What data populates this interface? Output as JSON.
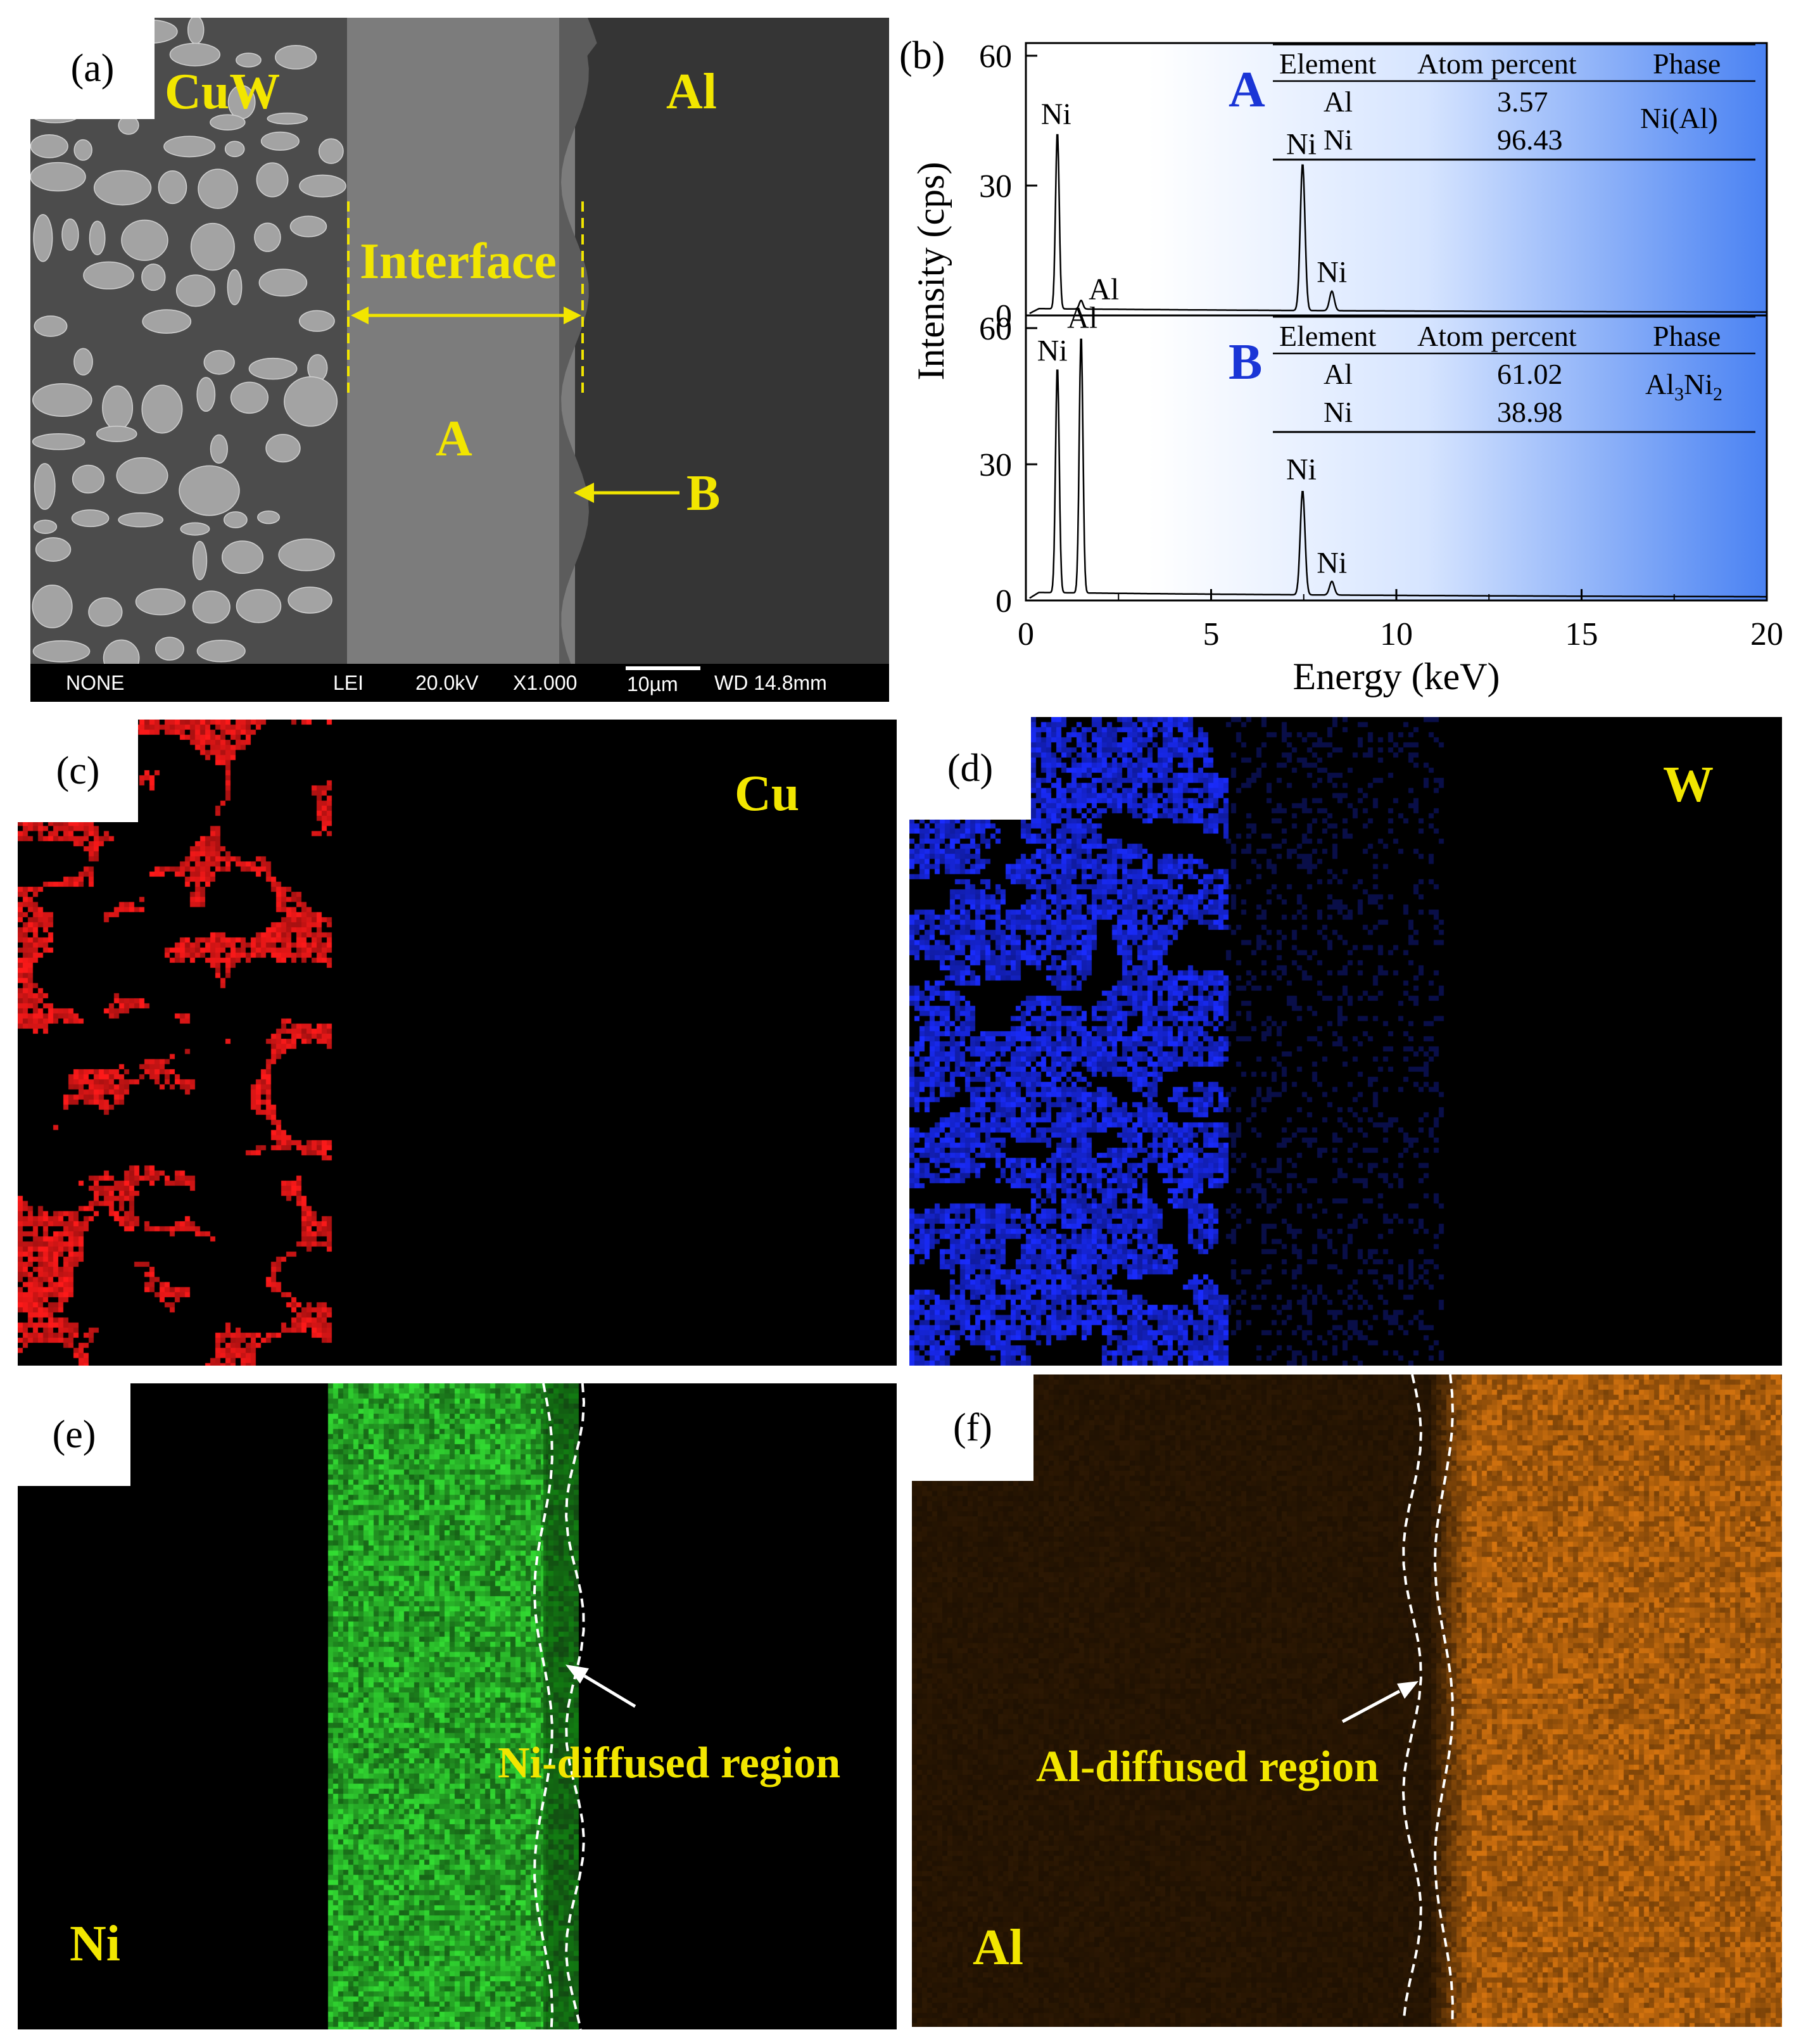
{
  "panels": {
    "a": {
      "label": "(a)",
      "regions": {
        "left": "CuW",
        "right": "Al"
      },
      "interface_label": "Interface",
      "point_a": "A",
      "point_b": "B",
      "info_bar": {
        "signal": "NONE",
        "detector": "LEI",
        "voltage": "20.0kV",
        "magnification": "X1.000",
        "scale": "10µm",
        "wd": "WD 14.8mm"
      },
      "colors": {
        "cuw_bg": "#4c4c4c",
        "particle": "#a3a3a3",
        "layer_a": "#7c7c7c",
        "layer_b": "#5c5c5c",
        "al": "#353535",
        "annotation": "#f2e600"
      }
    },
    "b": {
      "label": "(b)",
      "ylabel": "Intensity (cps)",
      "xlabel": "Energy (keV)",
      "spectra": [
        {
          "name": "A",
          "peak_labels": [
            "Ni",
            "Al",
            "Ni",
            "Ni"
          ],
          "table": {
            "headers": [
              "Element",
              "Atom  percent",
              "Phase"
            ],
            "rows": [
              [
                "Al",
                "3.57"
              ],
              [
                "Ni",
                "96.43"
              ]
            ],
            "phase": "Ni(Al)"
          }
        },
        {
          "name": "B",
          "peak_labels": [
            "Ni",
            "Al",
            "Ni",
            "Ni"
          ],
          "table": {
            "headers": [
              "Element",
              "Atom  percent",
              "Phase"
            ],
            "rows": [
              [
                "Al",
                "61.02"
              ],
              [
                "Ni",
                "38.98"
              ]
            ],
            "phase_main": "Al",
            "phase_sub1": "3",
            "phase_mid": "Ni",
            "phase_sub2": "2"
          }
        }
      ],
      "colors": {
        "label": "#1a35d6",
        "gradient": "#2a6cf0"
      }
    },
    "c": {
      "label": "(c)",
      "element": "Cu",
      "color": "#ff1a1a"
    },
    "d": {
      "label": "(d)",
      "element": "W",
      "color": "#1a2cff"
    },
    "e": {
      "label": "(e)",
      "element": "Ni",
      "region": "Ni-diffused region",
      "color": "#33dd33"
    },
    "f": {
      "label": "(f)",
      "element": "Al",
      "region": "Al-diffused region",
      "color": "#e07a10"
    }
  },
  "chart_data": [
    {
      "type": "line",
      "name": "A",
      "x_unit": "keV",
      "xlim": [
        0,
        20
      ],
      "ylim": [
        0,
        60
      ],
      "xticks": [
        0,
        5,
        10,
        15,
        20
      ],
      "yticks": [
        0,
        30,
        60
      ],
      "peaks": [
        {
          "label": "Ni",
          "x": 0.85,
          "y": 41
        },
        {
          "label": "Al",
          "x": 1.49,
          "y": 2
        },
        {
          "label": "Ni",
          "x": 7.47,
          "y": 34
        },
        {
          "label": "Ni",
          "x": 8.26,
          "y": 4.5
        }
      ],
      "baseline": 1
    },
    {
      "type": "line",
      "name": "B",
      "x_unit": "keV",
      "xlim": [
        0,
        20
      ],
      "ylim": [
        0,
        60
      ],
      "xticks": [
        0,
        5,
        10,
        15,
        20
      ],
      "yticks": [
        0,
        30,
        60
      ],
      "peaks": [
        {
          "label": "Ni",
          "x": 0.85,
          "y": 50
        },
        {
          "label": "Al",
          "x": 1.49,
          "y": 57
        },
        {
          "label": "Ni",
          "x": 7.47,
          "y": 23
        },
        {
          "label": "Ni",
          "x": 8.26,
          "y": 3
        }
      ],
      "baseline": 1.2
    }
  ]
}
